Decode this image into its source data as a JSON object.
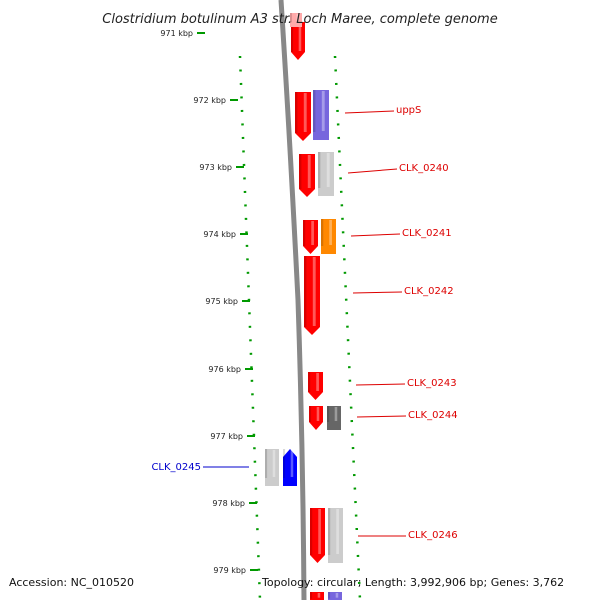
{
  "title": "Clostridium botulinum A3 str. Loch Maree, complete genome",
  "footer": {
    "accession": "Accession: NC_010520",
    "topology": "Topology: circular; Length: 3,992,906 bp; Genes: 3,762"
  },
  "ticks": [
    "971 kbp",
    "972 kbp",
    "973 kbp",
    "974 kbp",
    "975 kbp",
    "976 kbp",
    "977 kbp",
    "978 kbp",
    "979 kbp"
  ],
  "colors": {
    "cds_forward": "#ff0000",
    "cds_light": "#ffaaaa",
    "purple": "#7766dd",
    "light_gray": "#cccccc",
    "orange": "#ff8800",
    "dark_gray": "#666666",
    "blue": "#0000ff",
    "backbone": "#888888",
    "ruler": "#009900",
    "label_red": "#dd0000",
    "label_blue": "#0000cc"
  },
  "labels": [
    {
      "name": "uppS",
      "color": "label_red"
    },
    {
      "name": "CLK_0240",
      "color": "label_red"
    },
    {
      "name": "CLK_0241",
      "color": "label_red"
    },
    {
      "name": "CLK_0242",
      "color": "label_red"
    },
    {
      "name": "CLK_0243",
      "color": "label_red"
    },
    {
      "name": "CLK_0244",
      "color": "label_red"
    },
    {
      "name": "CLK_0245",
      "color": "label_blue"
    },
    {
      "name": "CLK_0246",
      "color": "label_red"
    }
  ]
}
